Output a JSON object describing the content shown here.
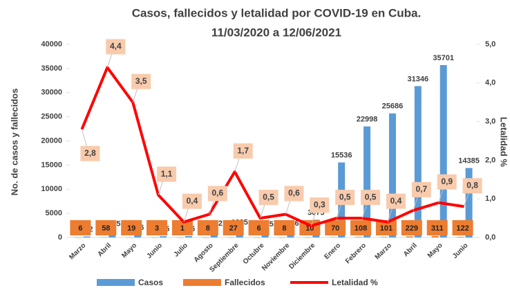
{
  "chart_data": {
    "type": "bar-line",
    "title": "Casos, fallecidos y letalidad por COVID-19 en Cuba.",
    "subtitle": "11/03/2020 a 12/06/2021",
    "y_label": "No. de casos y fallecidos",
    "y2_label": "Letalidad %",
    "categories": [
      "Marzo",
      "Abril",
      "Mayo",
      "Junio",
      "Julio",
      "Agosto",
      "Septiembre",
      "Octubre",
      "Noviembre",
      "Diciembre",
      "Enero",
      "Febrero",
      "Marzo",
      "Abril",
      "Mayo",
      "Junio"
    ],
    "series": [
      {
        "name": "Casos",
        "color": "#5b9bd5",
        "values": [
          212,
          1325,
          546,
          265,
          285,
          1432,
          1605,
          1265,
          1446,
          3675,
          15536,
          22998,
          25686,
          31346,
          35701,
          14385
        ]
      },
      {
        "name": "Fallecidos",
        "color": "#ed7d31",
        "values": [
          6,
          58,
          19,
          3,
          1,
          8,
          27,
          6,
          8,
          10,
          70,
          108,
          101,
          229,
          311,
          122
        ]
      },
      {
        "name": "Letalidad %",
        "color": "#ff0000",
        "axis": "y2",
        "values": [
          2.8,
          4.4,
          3.5,
          1.1,
          0.4,
          0.6,
          1.7,
          0.5,
          0.6,
          0.3,
          0.5,
          0.5,
          0.4,
          0.7,
          0.9,
          0.8
        ],
        "value_labels": [
          "2,8",
          "4,4",
          "3,5",
          "1,1",
          "0,4",
          "0,6",
          "1,7",
          "0,5",
          "0,6",
          "0,3",
          "0,5",
          "0,5",
          "0,4",
          "0,7",
          "0,9",
          "0,8"
        ]
      }
    ],
    "ylim": [
      0,
      40000
    ],
    "yticks": [
      0,
      5000,
      10000,
      15000,
      20000,
      25000,
      30000,
      35000,
      40000
    ],
    "y2lim": [
      0,
      5
    ],
    "y2ticks": [
      {
        "value": 0,
        "label": "0,0"
      },
      {
        "value": 1,
        "label": "1,0"
      },
      {
        "value": 2,
        "label": "2,0"
      },
      {
        "value": 3,
        "label": "3,0"
      },
      {
        "value": 4,
        "label": "4,0"
      },
      {
        "value": 5,
        "label": "5,0"
      }
    ],
    "legend": "bottom"
  }
}
